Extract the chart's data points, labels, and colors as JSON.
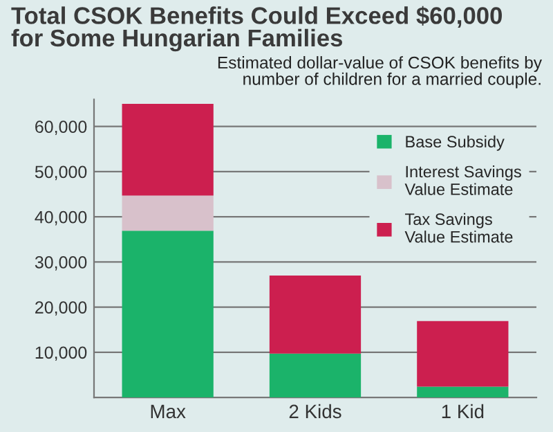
{
  "chart_data": {
    "type": "bar",
    "title": "Total CSOK Benefits Could Exceed $60,000\nfor Some Hungarian Families",
    "subtitle": "Estimated dollar-value of CSOK benefits by\nnumber of children for a married couple.",
    "categories": [
      "Max",
      "2 Kids",
      "1 Kid"
    ],
    "stacked": true,
    "series": [
      {
        "name": "Base Subsidy",
        "color": "#1bb36a",
        "values": [
          36900,
          9700,
          2400
        ]
      },
      {
        "name": "Interest Savings\nValue Estimate",
        "color": "#d8c1cb",
        "values": [
          7800,
          0,
          0
        ]
      },
      {
        "name": "Tax Savings\nValue Estimate",
        "color": "#cc1f4f",
        "values": [
          20300,
          17300,
          14500
        ]
      }
    ],
    "ylim": [
      0,
      66000
    ],
    "yticks": [
      {
        "value": 10000,
        "label": "10,000"
      },
      {
        "value": 20000,
        "label": "20,000"
      },
      {
        "value": 30000,
        "label": "30,000"
      },
      {
        "value": 40000,
        "label": "40,000"
      },
      {
        "value": 50000,
        "label": "50,000"
      },
      {
        "value": 60000,
        "label": "60,000"
      }
    ],
    "grid": "y",
    "legend": "top right"
  }
}
